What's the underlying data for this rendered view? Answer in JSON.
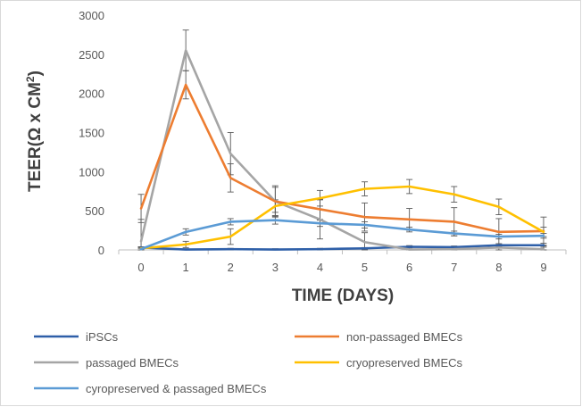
{
  "chart_data": {
    "type": "line",
    "title": "",
    "xlabel": "TIME (DAYS)",
    "ylabel_main": "TEER(Ω x CM",
    "ylabel_sup": "2",
    "ylabel_end": ")",
    "x": [
      0,
      1,
      2,
      3,
      4,
      5,
      6,
      7,
      8,
      9
    ],
    "x_tick_labels": [
      "0",
      "1",
      "2",
      "3",
      "4",
      "5",
      "6",
      "7",
      "8",
      "9"
    ],
    "ylim": [
      0,
      3000
    ],
    "y_ticks": [
      0,
      500,
      1000,
      1500,
      2000,
      2500,
      3000
    ],
    "y_tick_labels": [
      "0",
      "500",
      "1000",
      "1500",
      "2000",
      "2500",
      "3000"
    ],
    "grid": false,
    "legend_position": "bottom",
    "series": [
      {
        "name": "iPSCs",
        "color": "#2e5fa8",
        "values": [
          30,
          5,
          10,
          5,
          10,
          20,
          40,
          35,
          60,
          60
        ],
        "errors": [
          10,
          10,
          10,
          10,
          10,
          10,
          15,
          15,
          20,
          25
        ]
      },
      {
        "name": "non-passaged BMECs",
        "color": "#ed7d31",
        "values": [
          530,
          2110,
          920,
          620,
          520,
          420,
          390,
          360,
          230,
          240
        ],
        "errors": [
          180,
          180,
          180,
          180,
          130,
          180,
          140,
          180,
          170,
          180
        ]
      },
      {
        "name": "passaged BMECs",
        "color": "#a5a5a5",
        "values": [
          110,
          2550,
          1230,
          620,
          390,
          100,
          5,
          10,
          30,
          10
        ],
        "errors": [
          280,
          260,
          270,
          200,
          250,
          120,
          30,
          30,
          30,
          40
        ]
      },
      {
        "name": "cryopreserved BMECs",
        "color": "#ffc000",
        "values": [
          20,
          70,
          170,
          560,
          660,
          780,
          810,
          710,
          550,
          230
        ],
        "errors": [
          20,
          40,
          100,
          80,
          100,
          90,
          90,
          100,
          100,
          60
        ]
      },
      {
        "name": "cyropreserved & passaged BMECs",
        "color": "#5b9bd5",
        "values": [
          10,
          230,
          360,
          380,
          340,
          320,
          260,
          210,
          170,
          180
        ],
        "errors": [
          20,
          40,
          40,
          50,
          40,
          40,
          30,
          30,
          30,
          30
        ]
      }
    ]
  }
}
